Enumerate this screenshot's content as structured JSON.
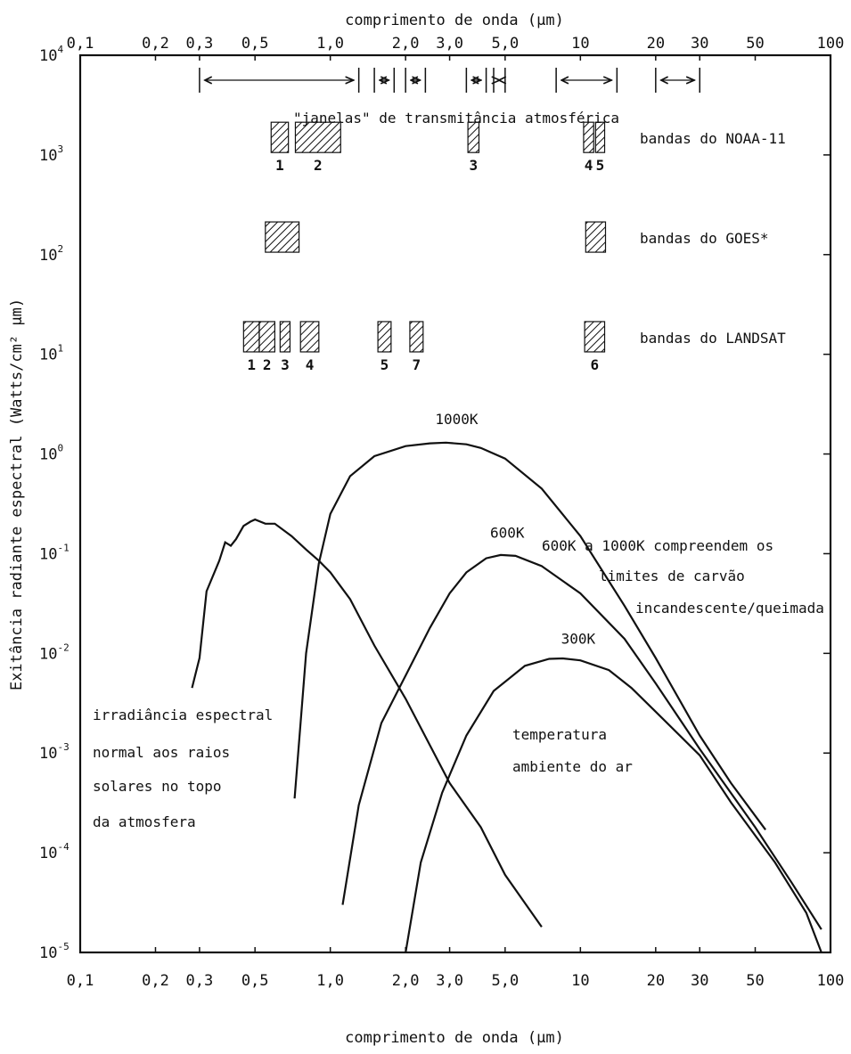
{
  "chart_data": {
    "type": "line",
    "title": "",
    "xlabel": "comprimento de onda (µm)",
    "x_top_label": "comprimento de onda (µm)",
    "ylabel": "Exitância radiante espectral (Watts/cm² µm)",
    "x_scale": "log",
    "y_scale": "log",
    "xlim": [
      0.1,
      100
    ],
    "ylim": [
      1e-05,
      10000
    ],
    "x_ticks": [
      {
        "value": 0.1,
        "label": "0,1"
      },
      {
        "value": 0.2,
        "label": "0,2"
      },
      {
        "value": 0.3,
        "label": "0,3"
      },
      {
        "value": 0.5,
        "label": "0,5"
      },
      {
        "value": 1.0,
        "label": "1,0"
      },
      {
        "value": 2.0,
        "label": "2,0"
      },
      {
        "value": 3.0,
        "label": "3,0"
      },
      {
        "value": 5.0,
        "label": "5,0"
      },
      {
        "value": 10,
        "label": "10"
      },
      {
        "value": 20,
        "label": "20"
      },
      {
        "value": 30,
        "label": "30"
      },
      {
        "value": 50,
        "label": "50"
      },
      {
        "value": 100,
        "label": "100"
      }
    ],
    "y_ticks": [
      {
        "value": 10000,
        "base": "10",
        "exp": "4"
      },
      {
        "value": 1000,
        "base": "10",
        "exp": "3"
      },
      {
        "value": 100,
        "base": "10",
        "exp": "2"
      },
      {
        "value": 10,
        "base": "10",
        "exp": "1"
      },
      {
        "value": 1,
        "base": "10",
        "exp": "0"
      },
      {
        "value": 0.1,
        "base": "10",
        "exp": "-1"
      },
      {
        "value": 0.01,
        "base": "10",
        "exp": "-2"
      },
      {
        "value": 0.001,
        "base": "10",
        "exp": "-3"
      },
      {
        "value": 0.0001,
        "base": "10",
        "exp": "-4"
      },
      {
        "value": 1e-05,
        "base": "10",
        "exp": "-5"
      }
    ],
    "series": [
      {
        "name": "1000K",
        "points": [
          [
            0.72,
            0.00035
          ],
          [
            0.8,
            0.01
          ],
          [
            0.9,
            0.08
          ],
          [
            1.0,
            0.25
          ],
          [
            1.2,
            0.6
          ],
          [
            1.5,
            0.95
          ],
          [
            2.0,
            1.2
          ],
          [
            2.5,
            1.28
          ],
          [
            2.9,
            1.3
          ],
          [
            3.5,
            1.25
          ],
          [
            4.0,
            1.15
          ],
          [
            5.0,
            0.9
          ],
          [
            7.0,
            0.45
          ],
          [
            10,
            0.15
          ],
          [
            15,
            0.03
          ],
          [
            20,
            0.009
          ],
          [
            30,
            0.0015
          ],
          [
            40,
            0.0005
          ],
          [
            55,
            0.00017
          ]
        ]
      },
      {
        "name": "600K",
        "points": [
          [
            1.12,
            3e-05
          ],
          [
            1.3,
            0.0003
          ],
          [
            1.6,
            0.002
          ],
          [
            2.0,
            0.006
          ],
          [
            2.5,
            0.018
          ],
          [
            3.0,
            0.04
          ],
          [
            3.5,
            0.065
          ],
          [
            4.2,
            0.09
          ],
          [
            4.8,
            0.097
          ],
          [
            5.5,
            0.095
          ],
          [
            7.0,
            0.075
          ],
          [
            10,
            0.04
          ],
          [
            15,
            0.014
          ],
          [
            20,
            0.005
          ],
          [
            30,
            0.0011
          ],
          [
            50,
            0.00018
          ],
          [
            70,
            5e-05
          ],
          [
            92,
            1.7e-05
          ]
        ]
      },
      {
        "name": "300K",
        "points": [
          [
            2.0,
            1e-05
          ],
          [
            2.3,
            8e-05
          ],
          [
            2.8,
            0.0004
          ],
          [
            3.5,
            0.0015
          ],
          [
            4.5,
            0.0042
          ],
          [
            6.0,
            0.0075
          ],
          [
            7.5,
            0.0088
          ],
          [
            8.5,
            0.0089
          ],
          [
            10,
            0.0085
          ],
          [
            13,
            0.0068
          ],
          [
            16,
            0.0045
          ],
          [
            20,
            0.0026
          ],
          [
            30,
            0.00095
          ],
          [
            40,
            0.00032
          ],
          [
            60,
            8e-05
          ],
          [
            80,
            2.5e-05
          ],
          [
            92,
            1e-05
          ]
        ]
      },
      {
        "name": "irradiância espectral normal aos raios solares no topo da atmosfera",
        "points": [
          [
            0.28,
            0.0045
          ],
          [
            0.3,
            0.009
          ],
          [
            0.32,
            0.042
          ],
          [
            0.36,
            0.085
          ],
          [
            0.38,
            0.13
          ],
          [
            0.4,
            0.12
          ],
          [
            0.42,
            0.14
          ],
          [
            0.45,
            0.19
          ],
          [
            0.48,
            0.21
          ],
          [
            0.5,
            0.22
          ],
          [
            0.55,
            0.2
          ],
          [
            0.6,
            0.2
          ],
          [
            0.7,
            0.15
          ],
          [
            0.8,
            0.11
          ],
          [
            0.9,
            0.085
          ],
          [
            1.0,
            0.065
          ],
          [
            1.2,
            0.035
          ],
          [
            1.5,
            0.012
          ],
          [
            2.0,
            0.0035
          ],
          [
            2.5,
            0.0012
          ],
          [
            3.0,
            0.0005
          ],
          [
            4.0,
            0.00018
          ],
          [
            5.0,
            6e-05
          ],
          [
            7.0,
            1.8e-05
          ]
        ]
      }
    ],
    "curve_labels": [
      {
        "text": "1000K",
        "x": 3.2,
        "y": 2.0
      },
      {
        "text": "600K",
        "x": 5.1,
        "y": 0.145
      },
      {
        "text": "300K",
        "x": 9.8,
        "y": 0.0125
      }
    ],
    "atmospheric_windows": {
      "label": "\"janelas\" de transmitância atmosférica",
      "ranges": [
        [
          0.3,
          1.3
        ],
        [
          1.5,
          1.8
        ],
        [
          2.0,
          2.4
        ],
        [
          3.5,
          4.2
        ],
        [
          4.5,
          5.0
        ],
        [
          8.0,
          14.0
        ],
        [
          20.0,
          30.0
        ]
      ]
    },
    "band_groups": [
      {
        "name": "bandas do NOAA-11",
        "y": 1500,
        "bands": [
          {
            "label": "1",
            "x0": 0.58,
            "x1": 0.68
          },
          {
            "label": "2",
            "x0": 0.725,
            "x1": 1.1
          },
          {
            "label": "3",
            "x0": 3.55,
            "x1": 3.93
          },
          {
            "label": "4",
            "x0": 10.3,
            "x1": 11.3
          },
          {
            "label": "5",
            "x0": 11.5,
            "x1": 12.5
          }
        ]
      },
      {
        "name": "bandas do GOES*",
        "y": 150,
        "bands": [
          {
            "label": "",
            "x0": 0.55,
            "x1": 0.75
          },
          {
            "label": "",
            "x0": 10.5,
            "x1": 12.6
          }
        ]
      },
      {
        "name": "bandas do LANDSAT",
        "y": 15,
        "bands": [
          {
            "label": "1",
            "x0": 0.45,
            "x1": 0.52
          },
          {
            "label": "2",
            "x0": 0.52,
            "x1": 0.6
          },
          {
            "label": "3",
            "x0": 0.63,
            "x1": 0.69
          },
          {
            "label": "4",
            "x0": 0.76,
            "x1": 0.9
          },
          {
            "label": "5",
            "x0": 1.55,
            "x1": 1.75
          },
          {
            "label": "7",
            "x0": 2.08,
            "x1": 2.35
          },
          {
            "label": "6",
            "x0": 10.4,
            "x1": 12.5
          }
        ]
      }
    ],
    "annotations": {
      "temp_range": [
        "600K a 1000K compreendem os",
        "limites de carvão",
        "incandescente/queimada"
      ],
      "solar": [
        "irradiância espectral",
        "normal aos raios",
        "solares no topo",
        "da atmosfera"
      ],
      "ambient": [
        "temperatura",
        "ambiente do ar"
      ]
    },
    "grid": false,
    "legend": "none"
  }
}
